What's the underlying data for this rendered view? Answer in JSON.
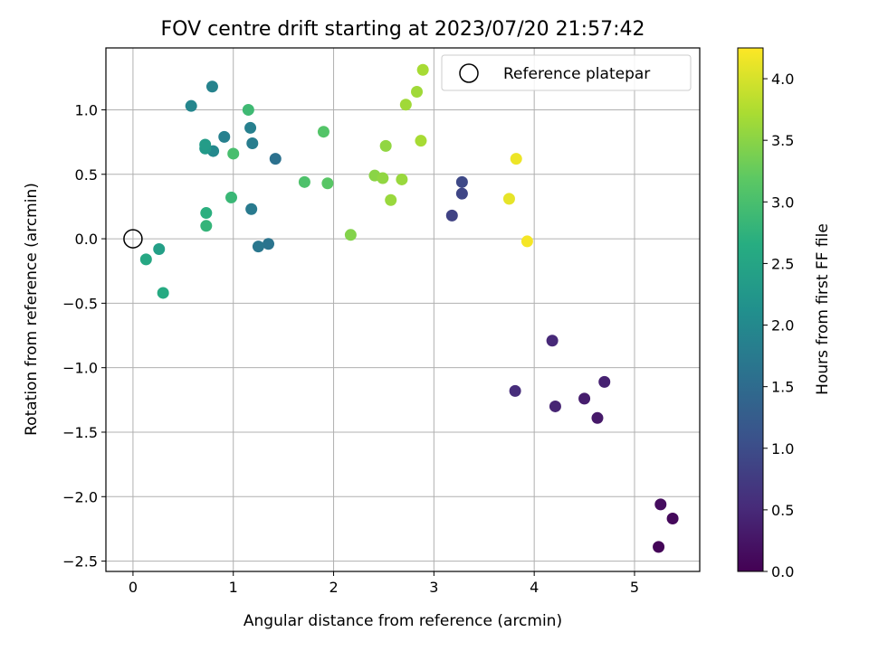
{
  "chart_data": {
    "type": "scatter",
    "title": "FOV centre drift starting at 2023/07/20 21:57:42",
    "xlabel": "Angular distance from reference (arcmin)",
    "ylabel": "Rotation from reference (arcmin)",
    "xlim": [
      -0.27,
      5.65
    ],
    "ylim": [
      -2.58,
      1.48
    ],
    "xticks": [
      0,
      1,
      2,
      3,
      4,
      5
    ],
    "xtick_labels": [
      "0",
      "1",
      "2",
      "3",
      "4",
      "5"
    ],
    "yticks": [
      -2.5,
      -2.0,
      -1.5,
      -1.0,
      -0.5,
      0.0,
      0.5,
      1.0
    ],
    "ytick_labels": [
      "−2.5",
      "−2.0",
      "−1.5",
      "−1.0",
      "−0.5",
      "0.0",
      "0.5",
      "1.0"
    ],
    "grid": true,
    "legend_position": "top-right",
    "reference": {
      "name": "Reference platepar",
      "x": 0,
      "y": 0
    },
    "colorbar": {
      "label": "Hours from first FF file",
      "colormap": "viridis",
      "range": [
        0.0,
        4.25
      ],
      "ticks": [
        0.0,
        0.5,
        1.0,
        1.5,
        2.0,
        2.5,
        3.0,
        3.5,
        4.0
      ],
      "tick_labels": [
        "0.0",
        "0.5",
        "1.0",
        "1.5",
        "2.0",
        "2.5",
        "3.0",
        "3.5",
        "4.0"
      ]
    },
    "points": [
      {
        "x": 5.24,
        "y": -2.39,
        "c": 0.05
      },
      {
        "x": 5.38,
        "y": -2.17,
        "c": 0.1
      },
      {
        "x": 5.26,
        "y": -2.06,
        "c": 0.15
      },
      {
        "x": 4.63,
        "y": -1.39,
        "c": 0.3
      },
      {
        "x": 4.5,
        "y": -1.24,
        "c": 0.35
      },
      {
        "x": 4.7,
        "y": -1.11,
        "c": 0.4
      },
      {
        "x": 4.21,
        "y": -1.3,
        "c": 0.45
      },
      {
        "x": 4.18,
        "y": -0.79,
        "c": 0.5
      },
      {
        "x": 3.81,
        "y": -1.18,
        "c": 0.55
      },
      {
        "x": 3.18,
        "y": 0.18,
        "c": 0.85
      },
      {
        "x": 3.28,
        "y": 0.35,
        "c": 0.9
      },
      {
        "x": 3.28,
        "y": 0.44,
        "c": 0.95
      },
      {
        "x": 1.42,
        "y": 0.62,
        "c": 1.6
      },
      {
        "x": 1.35,
        "y": -0.04,
        "c": 1.65
      },
      {
        "x": 1.25,
        "y": -0.06,
        "c": 1.7
      },
      {
        "x": 1.18,
        "y": 0.23,
        "c": 1.75
      },
      {
        "x": 1.19,
        "y": 0.74,
        "c": 1.8
      },
      {
        "x": 1.17,
        "y": 0.86,
        "c": 1.85
      },
      {
        "x": 0.91,
        "y": 0.79,
        "c": 1.85
      },
      {
        "x": 0.79,
        "y": 1.18,
        "c": 1.9
      },
      {
        "x": 0.58,
        "y": 1.03,
        "c": 1.95
      },
      {
        "x": 0.8,
        "y": 0.68,
        "c": 2.0
      },
      {
        "x": 0.72,
        "y": 0.7,
        "c": 2.3
      },
      {
        "x": 0.72,
        "y": 0.73,
        "c": 2.35
      },
      {
        "x": 0.26,
        "y": -0.08,
        "c": 2.4
      },
      {
        "x": 0.13,
        "y": -0.16,
        "c": 2.55
      },
      {
        "x": 0.3,
        "y": -0.42,
        "c": 2.6
      },
      {
        "x": 0.73,
        "y": 0.2,
        "c": 2.7
      },
      {
        "x": 0.73,
        "y": 0.1,
        "c": 2.8
      },
      {
        "x": 0.98,
        "y": 0.32,
        "c": 2.85
      },
      {
        "x": 1.15,
        "y": 1.0,
        "c": 2.9
      },
      {
        "x": 1.0,
        "y": 0.66,
        "c": 3.0
      },
      {
        "x": 1.71,
        "y": 0.44,
        "c": 3.05
      },
      {
        "x": 1.9,
        "y": 0.83,
        "c": 3.1
      },
      {
        "x": 1.94,
        "y": 0.43,
        "c": 3.15
      },
      {
        "x": 2.17,
        "y": 0.03,
        "c": 3.45
      },
      {
        "x": 2.41,
        "y": 0.49,
        "c": 3.5
      },
      {
        "x": 2.49,
        "y": 0.47,
        "c": 3.55
      },
      {
        "x": 2.52,
        "y": 0.72,
        "c": 3.55
      },
      {
        "x": 2.57,
        "y": 0.3,
        "c": 3.6
      },
      {
        "x": 2.68,
        "y": 0.46,
        "c": 3.6
      },
      {
        "x": 2.72,
        "y": 1.04,
        "c": 3.65
      },
      {
        "x": 2.83,
        "y": 1.14,
        "c": 3.65
      },
      {
        "x": 2.87,
        "y": 0.76,
        "c": 3.7
      },
      {
        "x": 2.89,
        "y": 1.31,
        "c": 3.7
      },
      {
        "x": 3.75,
        "y": 0.31,
        "c": 4.1
      },
      {
        "x": 3.82,
        "y": 0.62,
        "c": 4.15
      },
      {
        "x": 3.93,
        "y": -0.02,
        "c": 4.2
      }
    ]
  }
}
